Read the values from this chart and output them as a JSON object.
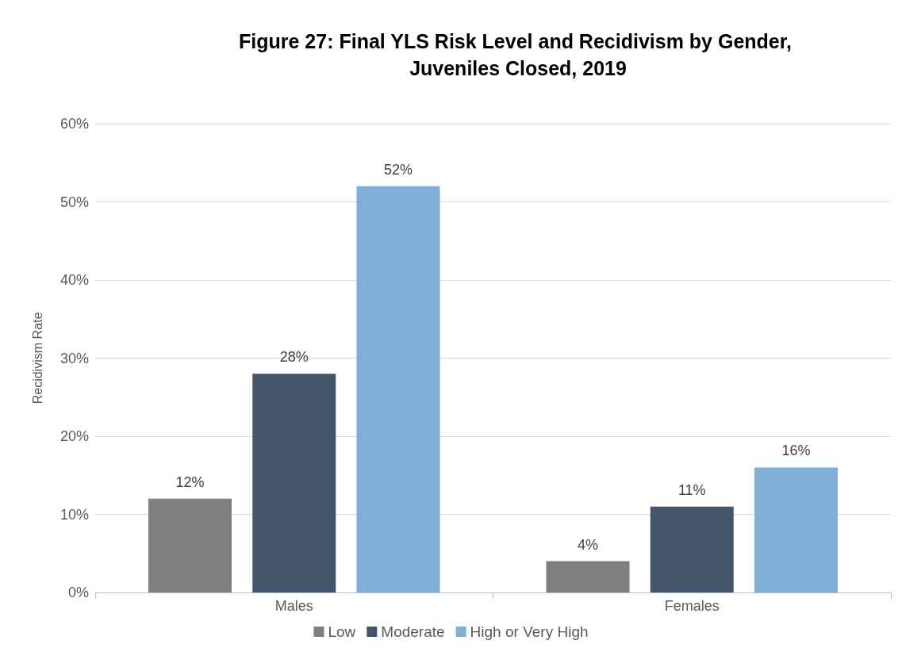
{
  "chart_data": {
    "type": "bar",
    "title": "Figure 27: Final YLS Risk Level and Recidivism by Gender, Juveniles Closed, 2019",
    "ylabel": "Recidivism Rate",
    "categories": [
      "Males",
      "Females"
    ],
    "series": [
      {
        "name": "Low",
        "color": "#7f7f7f",
        "values": [
          12,
          4
        ],
        "value_labels": [
          "12%",
          "4%"
        ]
      },
      {
        "name": "Moderate",
        "color": "#44546a",
        "values": [
          28,
          11
        ],
        "value_labels": [
          "28%",
          "11%"
        ]
      },
      {
        "name": "High or Very High",
        "color": "#7faed6",
        "values": [
          52,
          16
        ],
        "value_labels": [
          "52%",
          "16%"
        ]
      }
    ],
    "ylim": [
      0,
      60
    ],
    "yticks": [
      {
        "value": 0,
        "label": "0%"
      },
      {
        "value": 10,
        "label": "10%"
      },
      {
        "value": 20,
        "label": "20%"
      },
      {
        "value": 30,
        "label": "30%"
      },
      {
        "value": 40,
        "label": "40%"
      },
      {
        "value": 50,
        "label": "50%"
      },
      {
        "value": 60,
        "label": "60%"
      }
    ],
    "grid": "y",
    "legend": "bottom"
  }
}
